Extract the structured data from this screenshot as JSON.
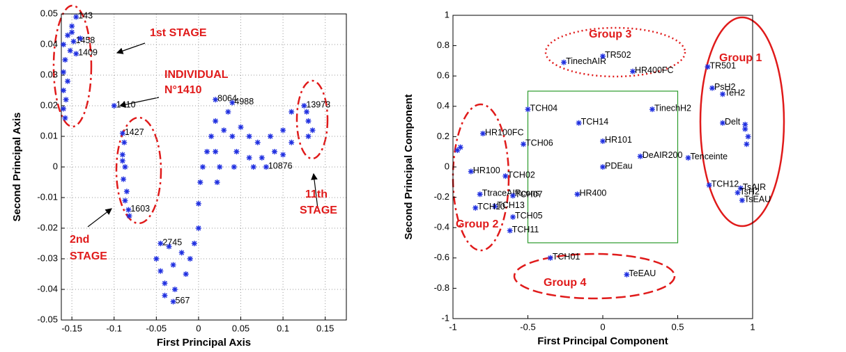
{
  "chart_data": [
    {
      "type": "scatter",
      "xlabel": "First Principal Axis",
      "ylabel": "Second Principal Axis",
      "color": "#1f2fe0",
      "grid": true,
      "xlim": [
        -0.1625,
        0.175
      ],
      "ylim": [
        -0.05,
        0.05
      ],
      "xticks": [
        -0.15,
        -0.1,
        -0.05,
        0,
        0.05,
        0.1,
        0.15
      ],
      "yticks": [
        -0.05,
        -0.04,
        -0.03,
        -0.02,
        -0.01,
        0,
        0.01,
        0.02,
        0.03,
        0.04,
        0.05
      ],
      "x": [
        -0.145,
        -0.15,
        -0.155,
        -0.16,
        -0.148,
        -0.152,
        -0.158,
        -0.145,
        -0.16,
        -0.155,
        -0.16,
        -0.157,
        -0.16,
        -0.158,
        -0.15,
        -0.14,
        -0.1,
        -0.09,
        -0.088,
        -0.09,
        -0.087,
        -0.089,
        -0.085,
        -0.087,
        -0.083,
        -0.082,
        -0.09,
        -0.045,
        -0.05,
        -0.045,
        -0.04,
        -0.035,
        -0.03,
        -0.028,
        -0.03,
        -0.02,
        -0.015,
        -0.01,
        -0.005,
        -0.04,
        0,
        0,
        0.002,
        0.005,
        0.01,
        0.015,
        0.02,
        0.02,
        0.02,
        0.022,
        0.025,
        0.03,
        0.035,
        0.04,
        0.04,
        0.042,
        0.045,
        0.05,
        0.06,
        0.06,
        0.065,
        0.07,
        0.075,
        0.08,
        0.085,
        0.09,
        0.1,
        0.1,
        0.11,
        0.11,
        0.125,
        0.13,
        0.13,
        0.135,
        0.128
      ],
      "y": [
        0.049,
        0.046,
        0.043,
        0.04,
        0.041,
        0.038,
        0.035,
        0.037,
        0.031,
        0.028,
        0.025,
        0.022,
        0.019,
        0.016,
        0.044,
        0.042,
        0.02,
        0.011,
        0.008,
        0.004,
        0,
        -0.004,
        -0.008,
        -0.011,
        -0.014,
        -0.016,
        0.002,
        -0.025,
        -0.03,
        -0.034,
        -0.038,
        -0.026,
        -0.032,
        -0.04,
        -0.044,
        -0.028,
        -0.035,
        -0.03,
        -0.025,
        -0.042,
        -0.02,
        -0.012,
        -0.005,
        0,
        0.005,
        0.01,
        0.022,
        0.015,
        0.005,
        -0.005,
        0,
        0.012,
        0.018,
        0.021,
        0.01,
        0,
        0.005,
        0.013,
        0.01,
        0.003,
        0,
        0.008,
        0.003,
        0,
        0.01,
        0.005,
        0.012,
        0.004,
        0.018,
        0.008,
        0.02,
        0.015,
        0.01,
        0.012,
        0.018
      ],
      "point_labels": [
        "143",
        null,
        null,
        null,
        "1458",
        null,
        null,
        "1409",
        null,
        null,
        null,
        null,
        null,
        null,
        null,
        null,
        "1410",
        "1427",
        null,
        null,
        null,
        null,
        null,
        null,
        "1603",
        null,
        null,
        "2745",
        null,
        null,
        null,
        null,
        null,
        null,
        "567",
        null,
        null,
        null,
        null,
        null,
        null,
        null,
        null,
        null,
        null,
        null,
        "8064",
        null,
        null,
        null,
        null,
        null,
        null,
        "4988",
        null,
        null,
        null,
        null,
        null,
        null,
        null,
        null,
        null,
        "10876",
        null,
        null,
        null,
        null,
        null,
        null,
        "13973",
        null,
        null,
        null,
        null
      ],
      "annotations": [
        [
          "1st STAGE"
        ],
        [
          "INDIVIDUAL",
          "N°1410"
        ],
        [
          "2nd",
          "STAGE"
        ],
        [
          "11th",
          "STAGE"
        ]
      ]
    },
    {
      "type": "scatter",
      "xlabel": "First Principal Component",
      "ylabel": "Second Principal Component",
      "color": "#1f2fe0",
      "grid": false,
      "xlim": [
        -1,
        1
      ],
      "ylim": [
        -1,
        1
      ],
      "xticks": [
        -1,
        -0.5,
        0,
        0.5,
        1
      ],
      "yticks": [
        -1,
        -0.8,
        -0.6,
        -0.4,
        -0.2,
        0,
        0.2,
        0.4,
        0.6,
        0.8,
        1
      ],
      "x": [
        -0.8,
        -0.5,
        -0.16,
        -0.26,
        0,
        0.2,
        0.33,
        0.7,
        0.73,
        0.8,
        0,
        -0.53,
        0.25,
        -0.65,
        -0.88,
        0,
        -0.82,
        -0.6,
        -0.72,
        -0.85,
        -0.6,
        -0.62,
        -0.17,
        -0.35,
        0.16,
        0.57,
        0.71,
        0.92,
        0.9,
        0.93,
        0.8,
        -0.95,
        -0.97,
        0.95,
        0.97,
        0.95,
        0.96
      ],
      "y": [
        0.22,
        0.38,
        0.29,
        0.69,
        0.73,
        0.63,
        0.38,
        0.66,
        0.52,
        0.48,
        0.17,
        0.15,
        0.07,
        -0.06,
        -0.03,
        0,
        -0.18,
        -0.19,
        -0.26,
        -0.27,
        -0.33,
        -0.42,
        -0.18,
        -0.6,
        -0.71,
        0.06,
        -0.12,
        -0.14,
        -0.17,
        -0.22,
        0.29,
        0.13,
        0.11,
        0.25,
        0.2,
        0.28,
        0.15
      ],
      "point_labels": [
        "HR100FC",
        "TCH04",
        "TCH14",
        "TinechAIR",
        "TR502",
        "HR400FC",
        "TinechH2",
        "TR501",
        "PsH2",
        "TeH2",
        "HR101",
        "TCH06",
        "DeAIR200",
        "TCH02",
        "HR100",
        "PDEau",
        "TtraceAIRcons",
        "TCH07",
        "TCH13",
        "TCH10",
        "TCH05",
        "TCH11",
        "HR400",
        "TCH01",
        "TeEAU",
        "Tenceinte",
        "TCH12",
        "TsAIR",
        "TsH2",
        "TsEAU",
        "Delt",
        null,
        null,
        null,
        null,
        null,
        null
      ],
      "annotations": [
        [
          "Group 1"
        ],
        [
          "Group 2"
        ],
        [
          "Group 3"
        ],
        [
          "Group 4"
        ]
      ]
    }
  ]
}
